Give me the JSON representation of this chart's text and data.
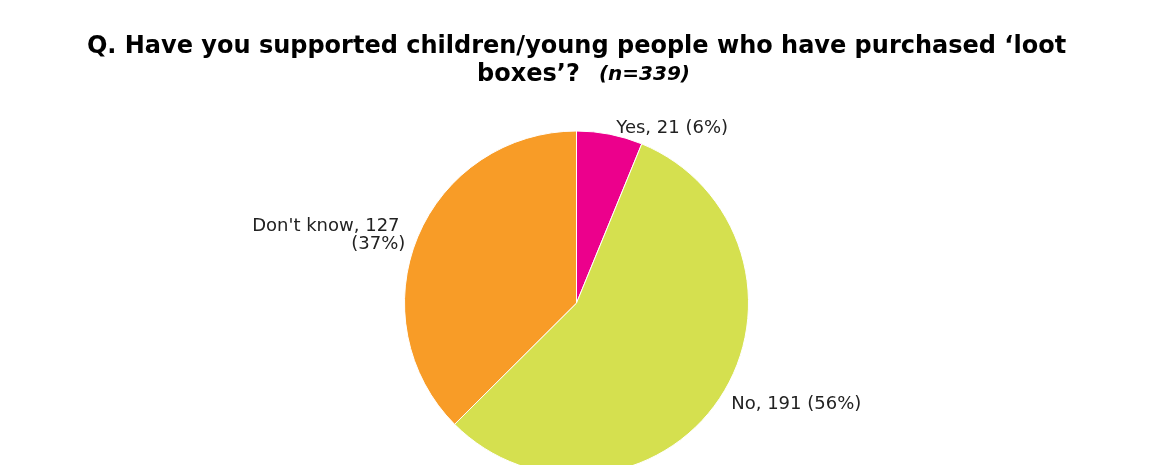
{
  "chart_data": {
    "type": "pie",
    "title": "Q. Have you supported children/young people who have purchased ‘loot boxes’?",
    "subtitle": "(n=339)",
    "categories": [
      "Yes",
      "No",
      "Don't know"
    ],
    "values": [
      21,
      191,
      127
    ],
    "value_labels": [
      "21 (6%)",
      "191 (56%)",
      "127 (37%)"
    ],
    "colors": [
      "#ec008c",
      "#d5e04f",
      "#f89c27"
    ],
    "legend": false
  }
}
